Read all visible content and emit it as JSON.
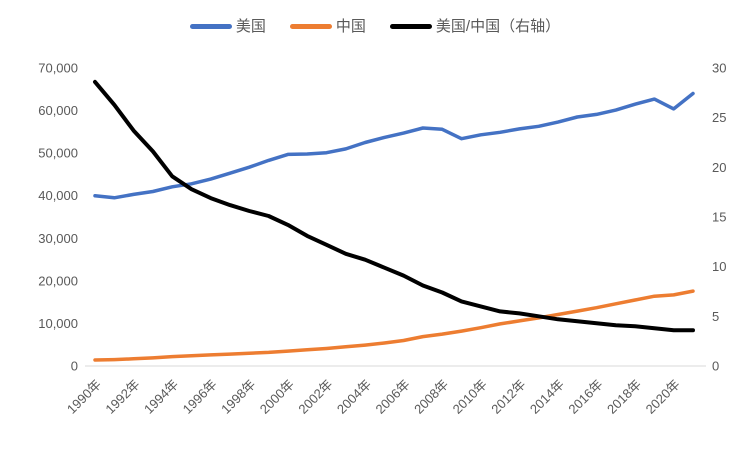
{
  "chart_data": {
    "type": "line",
    "title": "",
    "x": [
      1990,
      1991,
      1992,
      1993,
      1994,
      1995,
      1996,
      1997,
      1998,
      1999,
      2000,
      2001,
      2002,
      2003,
      2004,
      2005,
      2006,
      2007,
      2008,
      2009,
      2010,
      2011,
      2012,
      2013,
      2014,
      2015,
      2016,
      2017,
      2018,
      2019,
      2020,
      2021
    ],
    "x_ticks": [
      {
        "year": 1990,
        "label": "1990年"
      },
      {
        "year": 1992,
        "label": "1992年"
      },
      {
        "year": 1994,
        "label": "1994年"
      },
      {
        "year": 1996,
        "label": "1996年"
      },
      {
        "year": 1998,
        "label": "1998年"
      },
      {
        "year": 2000,
        "label": "2000年"
      },
      {
        "year": 2002,
        "label": "2002年"
      },
      {
        "year": 2004,
        "label": "2004年"
      },
      {
        "year": 2006,
        "label": "2006年"
      },
      {
        "year": 2008,
        "label": "2008年"
      },
      {
        "year": 2010,
        "label": "2010年"
      },
      {
        "year": 2012,
        "label": "2012年"
      },
      {
        "year": 2014,
        "label": "2014年"
      },
      {
        "year": 2016,
        "label": "2016年"
      },
      {
        "year": 2018,
        "label": "2018年"
      },
      {
        "year": 2020,
        "label": "2020年"
      }
    ],
    "series": [
      {
        "name": "美国",
        "axis": "left",
        "color": "#4472C4",
        "values": [
          40000,
          39500,
          40300,
          41000,
          42100,
          42800,
          43900,
          45300,
          46700,
          48300,
          49700,
          49800,
          50100,
          51000,
          52500,
          53700,
          54700,
          55900,
          55600,
          53400,
          54300,
          54900,
          55700,
          56300,
          57300,
          58500,
          59100,
          60100,
          61500,
          62700,
          60400,
          64000
        ]
      },
      {
        "name": "中国",
        "axis": "left",
        "color": "#ED7D31",
        "values": [
          1400,
          1500,
          1700,
          1900,
          2200,
          2400,
          2600,
          2800,
          3000,
          3200,
          3500,
          3800,
          4100,
          4500,
          4900,
          5400,
          6000,
          6900,
          7500,
          8200,
          9000,
          9900,
          10600,
          11300,
          12100,
          12900,
          13700,
          14600,
          15500,
          16400,
          16700,
          17600
        ]
      },
      {
        "name": "美国/中国（右轴）",
        "axis": "right",
        "color": "#000000",
        "values": [
          28.6,
          26.3,
          23.7,
          21.6,
          19.1,
          17.8,
          16.9,
          16.2,
          15.6,
          15.1,
          14.2,
          13.1,
          12.2,
          11.3,
          10.7,
          9.9,
          9.1,
          8.1,
          7.4,
          6.5,
          6.0,
          5.5,
          5.3,
          5.0,
          4.7,
          4.5,
          4.3,
          4.1,
          4.0,
          3.8,
          3.6,
          3.6
        ]
      }
    ],
    "left_axis": {
      "min": 0,
      "max": 70000,
      "step": 10000,
      "tick_labels": [
        "0",
        "10,000",
        "20,000",
        "30,000",
        "40,000",
        "50,000",
        "60,000",
        "70,000"
      ]
    },
    "right_axis": {
      "min": 0,
      "max": 30,
      "step": 5,
      "tick_labels": [
        "0",
        "5",
        "10",
        "15",
        "20",
        "25",
        "30"
      ]
    },
    "legend_position": "top",
    "grid": false
  },
  "colors": {
    "background": "#ffffff",
    "axis_text": "#595959",
    "axis_line": "#D9D9D9",
    "us_line": "#4472C4",
    "china_line": "#ED7D31",
    "ratio_line": "#000000"
  }
}
